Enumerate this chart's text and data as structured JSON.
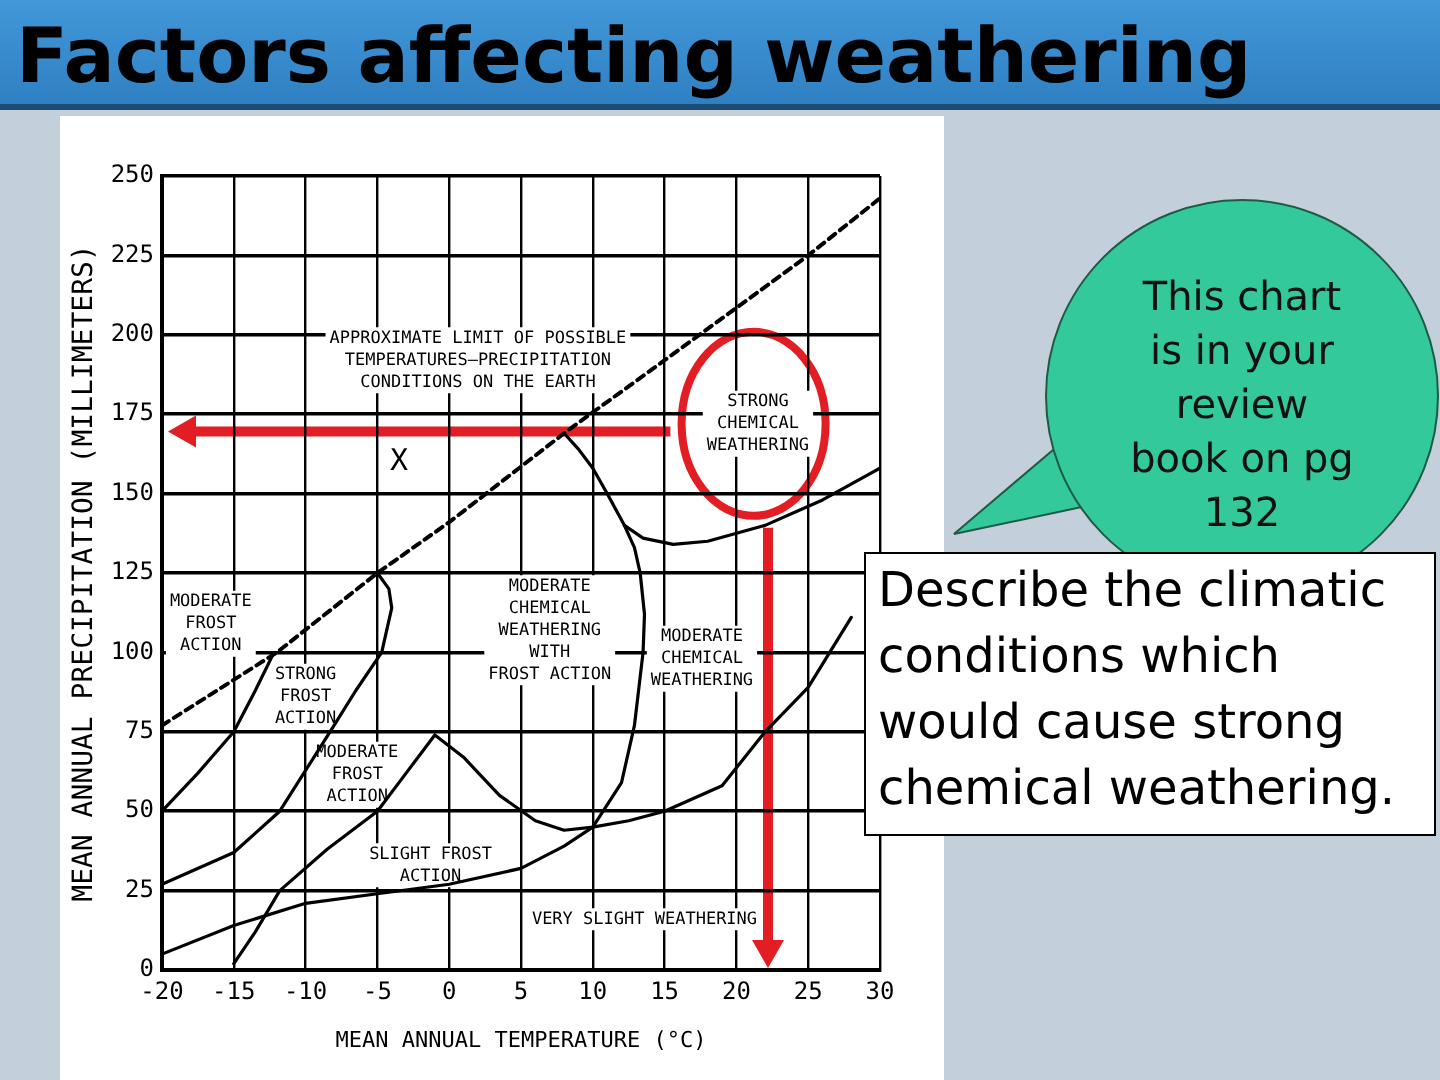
{
  "chart_data": {
    "type": "line",
    "title": "Factors affecting weathering",
    "xlabel": "MEAN ANNUAL TEMPERATURE (°C)",
    "ylabel": "MEAN ANNUAL PRECIPITATION (MILLIMETERS)",
    "xlim": [
      -20,
      30
    ],
    "xticks": [
      -20,
      -15,
      -10,
      -5,
      0,
      5,
      10,
      15,
      20,
      25,
      30
    ],
    "ylim": [
      0,
      250
    ],
    "yticks": [
      0,
      25,
      50,
      75,
      100,
      125,
      150,
      175,
      200,
      225,
      250
    ],
    "grid": true,
    "legend": false,
    "marker": "none",
    "series": [
      {
        "color": "#000000",
        "line_style": "dashed",
        "x": [
          -20,
          -12,
          -5,
          0,
          8,
          15,
          25,
          30
        ],
        "values": [
          77,
          100,
          125,
          141,
          169,
          192,
          225,
          243
        ]
      },
      {
        "color": "#000000",
        "x": [
          -20,
          -17.5,
          -15,
          -13.5,
          -12.2
        ],
        "values": [
          50,
          62,
          75,
          88,
          100
        ]
      },
      {
        "color": "#000000",
        "x": [
          -20,
          -15,
          -11.8,
          -8.3,
          -6.5,
          -4.7,
          -4,
          -4.2,
          -5
        ],
        "values": [
          27,
          37,
          50,
          75,
          88,
          100,
          114,
          120,
          125
        ]
      },
      {
        "color": "#000000",
        "x": [
          -20,
          -15,
          -10,
          -5,
          0,
          5,
          8,
          10,
          12,
          12.9,
          13.5,
          13.6,
          13.3,
          12.9,
          12.2,
          11,
          10,
          9,
          8
        ],
        "values": [
          5,
          14,
          21,
          24,
          27,
          32,
          39,
          45,
          59,
          77,
          100,
          112,
          125,
          133,
          140,
          150,
          158,
          164,
          169
        ]
      },
      {
        "color": "#000000",
        "x": [
          12.2,
          13.5,
          15.6,
          18,
          22,
          26,
          30
        ],
        "values": [
          140,
          136,
          134,
          135,
          140,
          148,
          158
        ]
      },
      {
        "color": "#000000",
        "x": [
          -15,
          -13.5,
          -11.8,
          -8.5,
          -5,
          -3,
          -1,
          1,
          3.5,
          6,
          8,
          10,
          12.5,
          15,
          19,
          22,
          25,
          28
        ],
        "values": [
          2,
          12,
          25,
          38,
          50,
          62,
          74,
          67,
          55,
          47,
          44,
          45,
          47,
          50,
          58,
          75,
          89,
          111
        ]
      }
    ],
    "annotations": [
      "APPROXIMATE LIMIT OF POSSIBLE\nTEMPERATURES–PRECIPITATION\nCONDITIONS ON THE EARTH",
      "X",
      "STRONG\nCHEMICAL\nWEATHERING",
      "MODERATE\nFROST\nACTION",
      "STRONG\nFROST\nACTION",
      "MODERATE\nFROST\nACTION",
      "SLIGHT FROST\nACTION",
      "MODERATE\nCHEMICAL\nWEATHERING\nWITH\nFROST ACTION",
      "MODERATE\nCHEMICAL\nWEATHERING",
      "VERY SLIGHT WEATHERING",
      "This chart is in your review book on pg 132",
      "Describe the climatic conditions which would cause strong chemical weathering."
    ]
  }
}
